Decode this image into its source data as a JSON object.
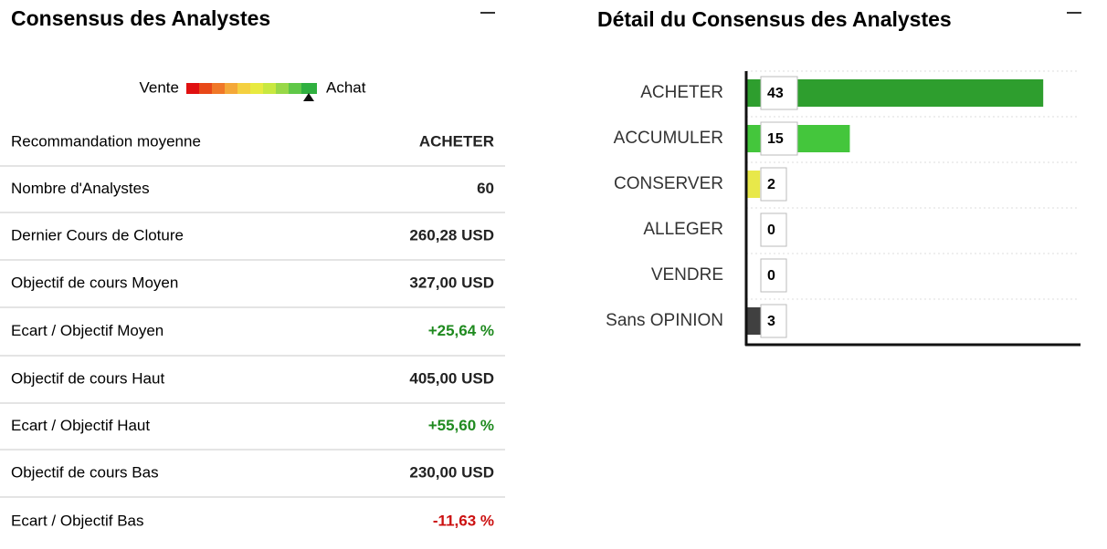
{
  "left": {
    "title": "Consensus des Analystes",
    "gauge": {
      "low_label": "Vente",
      "high_label": "Achat"
    },
    "rows": [
      {
        "label": "Recommandation moyenne",
        "value": "ACHETER"
      },
      {
        "label": "Nombre d'Analystes",
        "value": "60"
      },
      {
        "label": "Dernier Cours de Cloture",
        "value": "260,28 USD"
      },
      {
        "label": "Objectif de cours Moyen",
        "value": "327,00 USD"
      },
      {
        "label": "Ecart / Objectif Moyen",
        "value": "+25,64 %",
        "color": "#1f8a1f"
      },
      {
        "label": "Objectif de cours Haut",
        "value": "405,00 USD"
      },
      {
        "label": "Ecart / Objectif Haut",
        "value": "+55,60 %",
        "color": "#1f8a1f"
      },
      {
        "label": "Objectif de cours Bas",
        "value": "230,00 USD"
      },
      {
        "label": "Ecart / Objectif Bas",
        "value": "-11,63 %",
        "color": "#cc1111"
      }
    ]
  },
  "chart_data": {
    "type": "hbar",
    "title": "Détail du Consensus des Analystes",
    "categories": [
      "ACHETER",
      "ACCUMULER",
      "CONSERVER",
      "ALLEGER",
      "VENDRE",
      "Sans OPINION"
    ],
    "values": [
      43,
      15,
      2,
      0,
      0,
      3
    ],
    "colors": [
      "#2e9e2e",
      "#44c63c",
      "#e8e84a",
      "#f0a030",
      "#e02020",
      "#404040"
    ],
    "xlim": [
      0,
      48
    ],
    "grid": true
  }
}
